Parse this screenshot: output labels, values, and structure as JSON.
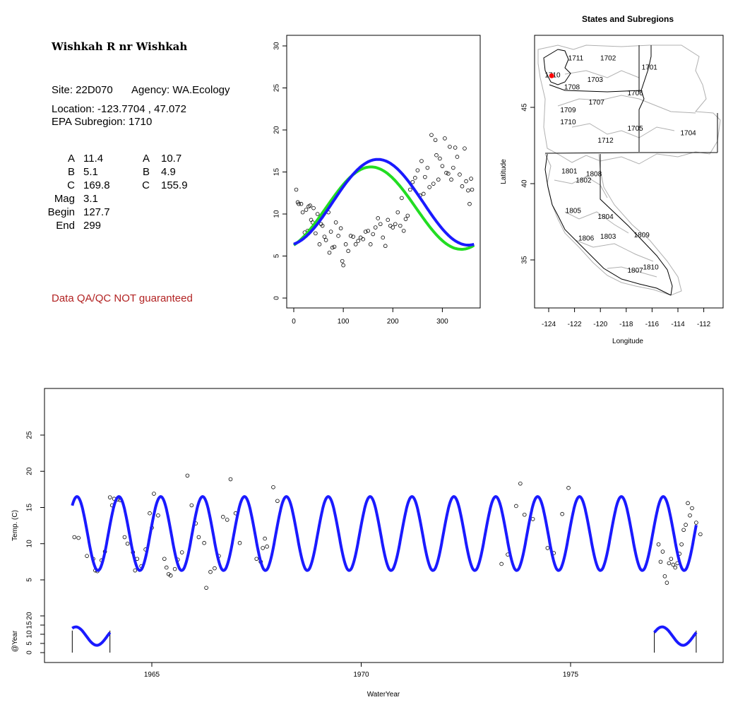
{
  "site": {
    "name": "Wishkah R nr Wishkah",
    "site_line": "Site: 22D070",
    "agency_line": "Agency: WA.Ecology",
    "location_line": "Location: -123.7704 , 47.072",
    "subregion_line": "EPA Subregion: 1710",
    "params_left": [
      {
        "label": "A",
        "value": "11.4"
      },
      {
        "label": "B",
        "value": "5.1"
      },
      {
        "label": "C",
        "value": "169.8"
      },
      {
        "label": "Mag",
        "value": "3.1"
      },
      {
        "label": "Begin",
        "value": "127.7"
      },
      {
        "label": "End",
        "value": "299"
      }
    ],
    "params_right": [
      {
        "label": "A",
        "value": "10.7"
      },
      {
        "label": "B",
        "value": "4.9"
      },
      {
        "label": "C",
        "value": "155.9"
      }
    ],
    "qa_note": "Data QA/QC NOT guaranteed"
  },
  "colors": {
    "fit_blue": "#1a1aff",
    "fit_green": "#22dd22",
    "site_red": "#ff0000",
    "qa_red": "#b22222",
    "region_gray": "#b0b0b0"
  },
  "chart_data": [
    {
      "id": "seasonal",
      "type": "scatter",
      "xlim": [
        0,
        365
      ],
      "ylim": [
        0,
        30
      ],
      "x_ticks": [
        "0",
        "100",
        "200",
        "300"
      ],
      "y_ticks": [
        "0",
        "5",
        "10",
        "15",
        "20",
        "25",
        "30"
      ],
      "points": [
        [
          5,
          12.9
        ],
        [
          8,
          11.4
        ],
        [
          10,
          11.2
        ],
        [
          15,
          11.2
        ],
        [
          18,
          10.2
        ],
        [
          22,
          7.8
        ],
        [
          25,
          10.5
        ],
        [
          28,
          8.0
        ],
        [
          30,
          10.9
        ],
        [
          33,
          11.0
        ],
        [
          35,
          9.3
        ],
        [
          38,
          9.0
        ],
        [
          40,
          10.7
        ],
        [
          44,
          7.7
        ],
        [
          48,
          10.0
        ],
        [
          52,
          6.4
        ],
        [
          55,
          8.8
        ],
        [
          58,
          8.6
        ],
        [
          62,
          7.3
        ],
        [
          65,
          6.9
        ],
        [
          70,
          10.2
        ],
        [
          72,
          5.4
        ],
        [
          75,
          7.9
        ],
        [
          78,
          6.0
        ],
        [
          82,
          6.1
        ],
        [
          85,
          9.0
        ],
        [
          90,
          7.4
        ],
        [
          95,
          8.3
        ],
        [
          98,
          4.4
        ],
        [
          100,
          3.9
        ],
        [
          105,
          6.4
        ],
        [
          110,
          5.6
        ],
        [
          115,
          7.4
        ],
        [
          120,
          7.3
        ],
        [
          125,
          6.4
        ],
        [
          130,
          6.8
        ],
        [
          135,
          7.2
        ],
        [
          140,
          7.0
        ],
        [
          145,
          7.9
        ],
        [
          150,
          8.0
        ],
        [
          155,
          6.4
        ],
        [
          160,
          7.6
        ],
        [
          165,
          8.4
        ],
        [
          170,
          9.5
        ],
        [
          175,
          8.8
        ],
        [
          180,
          7.2
        ],
        [
          185,
          6.2
        ],
        [
          190,
          9.3
        ],
        [
          195,
          8.6
        ],
        [
          200,
          8.4
        ],
        [
          205,
          8.8
        ],
        [
          210,
          10.2
        ],
        [
          215,
          8.6
        ],
        [
          218,
          11.9
        ],
        [
          222,
          8.0
        ],
        [
          226,
          9.4
        ],
        [
          230,
          9.8
        ],
        [
          235,
          12.9
        ],
        [
          240,
          13.8
        ],
        [
          245,
          14.3
        ],
        [
          250,
          15.2
        ],
        [
          255,
          12.2
        ],
        [
          258,
          16.3
        ],
        [
          262,
          12.4
        ],
        [
          265,
          14.4
        ],
        [
          270,
          15.5
        ],
        [
          274,
          13.2
        ],
        [
          278,
          19.4
        ],
        [
          282,
          13.6
        ],
        [
          286,
          18.8
        ],
        [
          288,
          17.0
        ],
        [
          292,
          14.1
        ],
        [
          295,
          16.6
        ],
        [
          300,
          15.7
        ],
        [
          305,
          19.0
        ],
        [
          308,
          14.9
        ],
        [
          312,
          14.8
        ],
        [
          315,
          18.0
        ],
        [
          318,
          14.1
        ],
        [
          322,
          15.5
        ],
        [
          326,
          17.9
        ],
        [
          330,
          16.8
        ],
        [
          335,
          14.7
        ],
        [
          340,
          13.3
        ],
        [
          345,
          17.8
        ],
        [
          348,
          13.9
        ],
        [
          352,
          12.8
        ],
        [
          355,
          11.2
        ],
        [
          358,
          14.2
        ],
        [
          360,
          12.9
        ]
      ],
      "fit_blue": {
        "A": 11.4,
        "B": 5.1,
        "C": 169.8
      },
      "fit_green": {
        "A": 10.7,
        "B": 4.9,
        "C": 155.9
      }
    },
    {
      "id": "map",
      "type": "map",
      "title": "States and Subregions",
      "xlabel": "Longitude",
      "ylabel": "Latitude",
      "xlim": [
        -125.5,
        -110.5
      ],
      "ylim": [
        32.3,
        49.4
      ],
      "x_ticks": [
        "-124",
        "-122",
        "-120",
        "-118",
        "-116",
        "-114",
        "-112"
      ],
      "y_ticks": [
        "35",
        "40",
        "45"
      ],
      "subregions": [
        {
          "label": "1702",
          "lon": -119.4,
          "lat": 48.2
        },
        {
          "label": "1711",
          "lon": -121.9,
          "lat": 48.2
        },
        {
          "label": "1701",
          "lon": -116.2,
          "lat": 47.6
        },
        {
          "label": "1710",
          "lon": -123.7,
          "lat": 47.1
        },
        {
          "label": "1703",
          "lon": -120.4,
          "lat": 46.8
        },
        {
          "label": "1708",
          "lon": -122.2,
          "lat": 46.3
        },
        {
          "label": "1706",
          "lon": -117.3,
          "lat": 45.9
        },
        {
          "label": "1707",
          "lon": -120.3,
          "lat": 45.3
        },
        {
          "label": "1709",
          "lon": -122.5,
          "lat": 44.8
        },
        {
          "label": "1710",
          "lon": -122.5,
          "lat": 44.0
        },
        {
          "label": "1705",
          "lon": -117.3,
          "lat": 43.6
        },
        {
          "label": "1704",
          "lon": -113.2,
          "lat": 43.3
        },
        {
          "label": "1712",
          "lon": -119.6,
          "lat": 42.8
        },
        {
          "label": "1801",
          "lon": -122.4,
          "lat": 40.8
        },
        {
          "label": "1808",
          "lon": -120.5,
          "lat": 40.6
        },
        {
          "label": "1802",
          "lon": -121.3,
          "lat": 40.2
        },
        {
          "label": "1805",
          "lon": -122.1,
          "lat": 38.2
        },
        {
          "label": "1804",
          "lon": -119.6,
          "lat": 37.8
        },
        {
          "label": "1806",
          "lon": -121.1,
          "lat": 36.4
        },
        {
          "label": "1803",
          "lon": -119.4,
          "lat": 36.5
        },
        {
          "label": "1809",
          "lon": -116.8,
          "lat": 36.6
        },
        {
          "label": "1810",
          "lon": -116.1,
          "lat": 34.5
        },
        {
          "label": "1807",
          "lon": -117.3,
          "lat": 34.3
        }
      ],
      "site_marker": {
        "lon": -123.7704,
        "lat": 47.072
      }
    },
    {
      "id": "timeseries",
      "type": "line",
      "xlabel": "WaterYear",
      "ylabel": "Temp. (C)",
      "ylabel_lower": "@Year",
      "xlim": [
        1962.5,
        1978.3
      ],
      "ylim": [
        0,
        30
      ],
      "lower_ylim": [
        0,
        25
      ],
      "x_ticks": [
        "1965",
        "1970",
        "1975"
      ],
      "y_ticks": [
        "5",
        "10",
        "15",
        "20",
        "25"
      ],
      "lower_y_ticks": [
        "0",
        "5",
        "10",
        "15",
        "20"
      ],
      "fit_start": 1963.1,
      "fit_end": 1978.0,
      "lower_segments": [
        [
          1963.1,
          1964.0
        ],
        [
          1977.0,
          1978.0
        ]
      ],
      "points": [
        [
          1963.15,
          10.9
        ],
        [
          1963.25,
          10.8
        ],
        [
          1963.45,
          8.3
        ],
        [
          1963.6,
          7.9
        ],
        [
          1963.65,
          6.3
        ],
        [
          1963.7,
          6.2
        ],
        [
          1963.8,
          7.7
        ],
        [
          1963.88,
          8.9
        ],
        [
          1964.0,
          16.4
        ],
        [
          1964.05,
          15.3
        ],
        [
          1964.1,
          16.2
        ],
        [
          1964.18,
          16.1
        ],
        [
          1964.25,
          16.0
        ],
        [
          1964.35,
          10.9
        ],
        [
          1964.42,
          10.0
        ],
        [
          1964.55,
          8.8
        ],
        [
          1964.6,
          6.3
        ],
        [
          1964.65,
          7.9
        ],
        [
          1964.75,
          6.9
        ],
        [
          1964.85,
          9.2
        ],
        [
          1964.95,
          14.2
        ],
        [
          1965.0,
          12.2
        ],
        [
          1965.05,
          16.9
        ],
        [
          1965.15,
          13.9
        ],
        [
          1965.3,
          7.9
        ],
        [
          1965.35,
          6.7
        ],
        [
          1965.4,
          5.8
        ],
        [
          1965.45,
          5.6
        ],
        [
          1965.55,
          6.5
        ],
        [
          1965.62,
          7.8
        ],
        [
          1965.72,
          8.8
        ],
        [
          1965.85,
          19.4
        ],
        [
          1965.95,
          15.3
        ],
        [
          1966.05,
          12.8
        ],
        [
          1966.12,
          10.9
        ],
        [
          1966.25,
          10.1
        ],
        [
          1966.3,
          3.9
        ],
        [
          1966.4,
          6.1
        ],
        [
          1966.5,
          6.6
        ],
        [
          1966.6,
          8.3
        ],
        [
          1966.7,
          13.7
        ],
        [
          1966.8,
          13.3
        ],
        [
          1966.88,
          18.9
        ],
        [
          1967.0,
          14.2
        ],
        [
          1967.1,
          10.1
        ],
        [
          1967.5,
          7.9
        ],
        [
          1967.65,
          9.4
        ],
        [
          1967.7,
          10.7
        ],
        [
          1967.75,
          9.6
        ],
        [
          1967.9,
          17.8
        ],
        [
          1968.0,
          15.9
        ],
        [
          1967.6,
          7.5
        ],
        [
          1973.35,
          7.2
        ],
        [
          1973.5,
          8.5
        ],
        [
          1973.7,
          15.2
        ],
        [
          1973.8,
          18.3
        ],
        [
          1973.9,
          14.0
        ],
        [
          1974.1,
          13.4
        ],
        [
          1974.45,
          9.4
        ],
        [
          1974.6,
          8.7
        ],
        [
          1974.8,
          14.1
        ],
        [
          1974.95,
          17.7
        ],
        [
          1977.1,
          9.9
        ],
        [
          1977.15,
          7.5
        ],
        [
          1977.2,
          8.9
        ],
        [
          1977.25,
          5.5
        ],
        [
          1977.3,
          4.6
        ],
        [
          1977.35,
          7.3
        ],
        [
          1977.4,
          7.9
        ],
        [
          1977.45,
          7.1
        ],
        [
          1977.5,
          6.7
        ],
        [
          1977.55,
          7.3
        ],
        [
          1977.6,
          8.6
        ],
        [
          1977.65,
          9.9
        ],
        [
          1977.7,
          11.9
        ],
        [
          1977.75,
          12.6
        ],
        [
          1977.8,
          15.6
        ],
        [
          1977.85,
          13.9
        ],
        [
          1977.9,
          14.9
        ],
        [
          1978.0,
          12.9
        ],
        [
          1978.1,
          11.3
        ]
      ]
    }
  ]
}
